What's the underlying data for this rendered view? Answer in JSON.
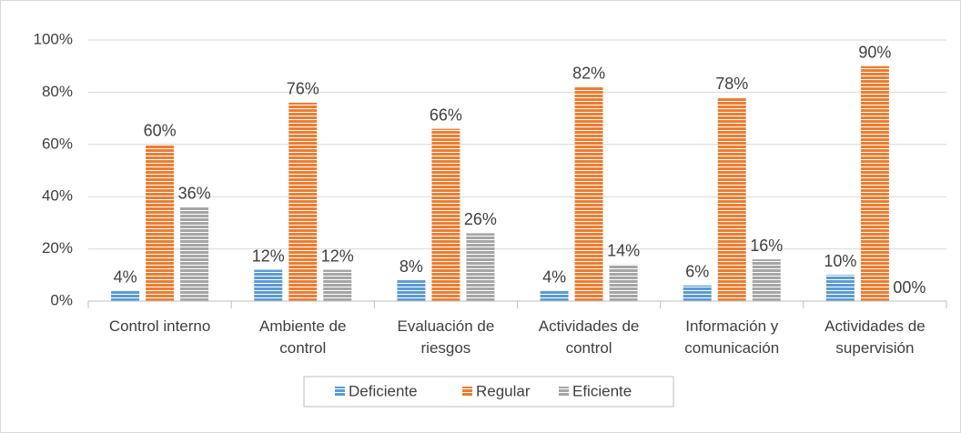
{
  "chart_data": {
    "type": "bar",
    "categories": [
      "Control interno",
      "Ambiente de control",
      "Evaluación de riesgos",
      "Actividades de control",
      "Información y comunicación",
      "Actividades de supervisión"
    ],
    "series": [
      {
        "name": "Deficiente",
        "color": "#5b9bd5",
        "values": [
          4,
          12,
          8,
          4,
          6,
          10
        ],
        "value_labels": [
          "4%",
          "12%",
          "8%",
          "4%",
          "6%",
          "10%"
        ]
      },
      {
        "name": "Regular",
        "color": "#ed7d31",
        "values": [
          60,
          76,
          66,
          82,
          78,
          90
        ],
        "value_labels": [
          "60%",
          "76%",
          "66%",
          "82%",
          "78%",
          "90%"
        ]
      },
      {
        "name": "Eficiente",
        "color": "#a5a5a5",
        "values": [
          36,
          12,
          26,
          14,
          16,
          0
        ],
        "value_labels": [
          "36%",
          "12%",
          "26%",
          "14%",
          "16%",
          "00%"
        ]
      }
    ],
    "ylim": [
      0,
      100
    ],
    "yticks": [
      {
        "value": 0,
        "label": "0%"
      },
      {
        "value": 20,
        "label": "20%"
      },
      {
        "value": 40,
        "label": "40%"
      },
      {
        "value": 60,
        "label": "60%"
      },
      {
        "value": 80,
        "label": "80%"
      },
      {
        "value": 100,
        "label": "100%"
      }
    ],
    "grid": true,
    "legend": "bottom"
  }
}
